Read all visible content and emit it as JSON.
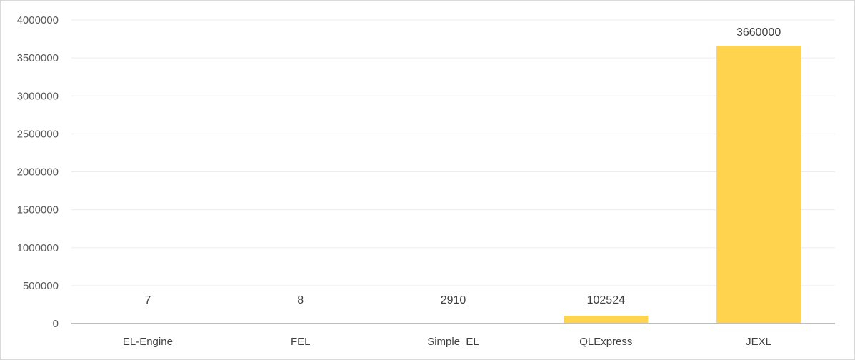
{
  "chart_data": {
    "type": "bar",
    "categories": [
      "EL-Engine",
      "FEL",
      "Simple  EL",
      "QLExpress",
      "JEXL"
    ],
    "values": [
      7,
      8,
      2910,
      102524,
      3660000
    ],
    "data_labels": [
      "7",
      "8",
      "2910",
      "102524",
      "3660000"
    ],
    "ylim": [
      0,
      4000000
    ],
    "yticks": [
      0,
      500000,
      1000000,
      1500000,
      2000000,
      2500000,
      3000000,
      3500000,
      4000000
    ],
    "ytick_labels": [
      "0",
      "500000",
      "1000000",
      "1500000",
      "2000000",
      "2500000",
      "3000000",
      "3500000",
      "4000000"
    ],
    "grid": true,
    "bar_color": "#FFD34D",
    "grid_color": "#EDEDED",
    "axis_color": "#BFBFBF"
  }
}
